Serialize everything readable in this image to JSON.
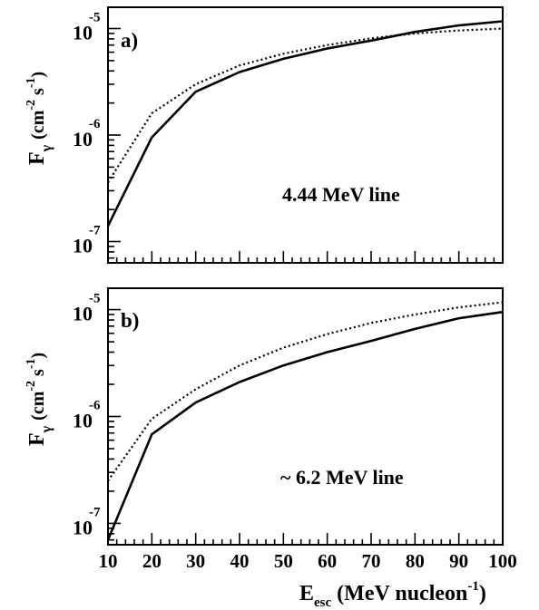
{
  "chart_data": [
    {
      "type": "line",
      "panel_label": "a)",
      "annotation": "4.44 MeV line",
      "ylabel": {
        "main": "F",
        "sub": "γ",
        "units": [
          "(cm",
          "-2",
          " s",
          "-1",
          ")"
        ]
      },
      "xlim": [
        10,
        100
      ],
      "ylim_log10": [
        -7.2,
        -4.8
      ],
      "y_tick_labels": [
        {
          "exp": -7,
          "base": "10",
          "sup": "-7"
        },
        {
          "exp": -6,
          "base": "10",
          "sup": "-6"
        },
        {
          "exp": -5,
          "base": "10",
          "sup": "-5"
        }
      ],
      "x": [
        10,
        20,
        30,
        40,
        50,
        60,
        70,
        80,
        90,
        100
      ],
      "series": [
        {
          "style": "solid",
          "values": [
            1.4e-07,
            9.5e-07,
            2.55e-06,
            3.9e-06,
            5.2e-06,
            6.5e-06,
            7.7e-06,
            9.3e-06,
            1.07e-05,
            1.17e-05
          ]
        },
        {
          "style": "dotted",
          "values": [
            3.6e-07,
            1.6e-06,
            3e-06,
            4.5e-06,
            5.8e-06,
            7e-06,
            8.1e-06,
            9e-06,
            9.6e-06,
            1e-05
          ]
        }
      ]
    },
    {
      "type": "line",
      "panel_label": "b)",
      "annotation": "~ 6.2 MeV line",
      "ylabel": {
        "main": "F",
        "sub": "γ",
        "units": [
          "(cm",
          "-2",
          " s",
          "-1",
          ")"
        ]
      },
      "xlim": [
        10,
        100
      ],
      "ylim_log10": [
        -7.2,
        -4.8
      ],
      "y_tick_labels": [
        {
          "exp": -7,
          "base": "10",
          "sup": "-7"
        },
        {
          "exp": -6,
          "base": "10",
          "sup": "-6"
        },
        {
          "exp": -5,
          "base": "10",
          "sup": "-5"
        }
      ],
      "x": [
        10,
        20,
        30,
        40,
        50,
        60,
        70,
        80,
        90,
        100
      ],
      "series": [
        {
          "style": "solid",
          "values": [
            7e-08,
            6.8e-07,
            1.35e-06,
            2.1e-06,
            3e-06,
            4e-06,
            5.1e-06,
            6.6e-06,
            8.3e-06,
            9.5e-06
          ]
        },
        {
          "style": "dotted",
          "values": [
            2.5e-07,
            9.5e-07,
            1.8e-06,
            3e-06,
            4.4e-06,
            5.9e-06,
            7.5e-06,
            9e-06,
            1.05e-05,
            1.17e-05
          ]
        }
      ]
    }
  ],
  "x_axis": {
    "tick_labels": [
      "10",
      "20",
      "30",
      "40",
      "50",
      "60",
      "70",
      "80",
      "90",
      "100"
    ],
    "label": {
      "main": "E",
      "sub": "esc",
      "rest": " (MeV nucleon",
      "sup": "-1",
      "end": ")"
    }
  }
}
